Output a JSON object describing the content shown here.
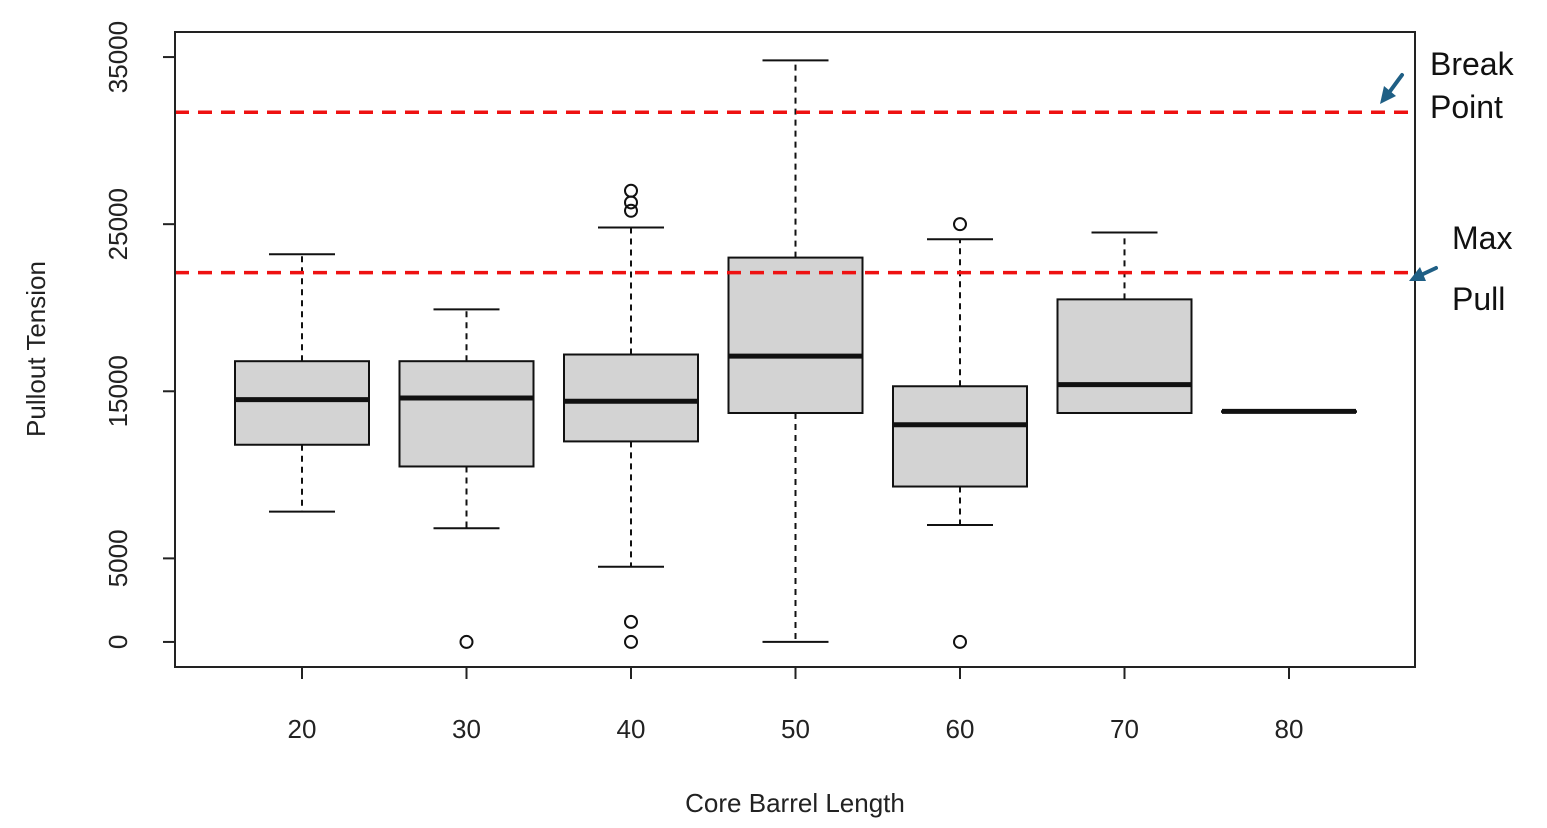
{
  "chart_data": {
    "type": "boxplot",
    "xlabel": "Core Barrel Length",
    "ylabel": "Pullout Tension",
    "ylim": [
      -1500,
      36500
    ],
    "y_ticks": [
      0,
      5000,
      15000,
      25000,
      35000
    ],
    "categories": [
      "20",
      "30",
      "40",
      "50",
      "60",
      "70",
      "80"
    ],
    "boxes": [
      {
        "category": "20",
        "whisker_low": 7800,
        "q1": 11800,
        "median": 14500,
        "q3": 16800,
        "whisker_high": 23200,
        "outliers": []
      },
      {
        "category": "30",
        "whisker_low": 6800,
        "q1": 10500,
        "median": 14600,
        "q3": 16800,
        "whisker_high": 19900,
        "outliers": [
          0
        ]
      },
      {
        "category": "40",
        "whisker_low": 4500,
        "q1": 12000,
        "median": 14400,
        "q3": 17200,
        "whisker_high": 24800,
        "outliers": [
          0,
          1200,
          25800,
          26300,
          27000
        ]
      },
      {
        "category": "50",
        "whisker_low": 0,
        "q1": 13700,
        "median": 17100,
        "q3": 23000,
        "whisker_high": 34800,
        "outliers": []
      },
      {
        "category": "60",
        "whisker_low": 7000,
        "q1": 9300,
        "median": 13000,
        "q3": 15300,
        "whisker_high": 24100,
        "outliers": [
          0,
          25000
        ]
      },
      {
        "category": "70",
        "whisker_low": 13700,
        "q1": 13700,
        "median": 15400,
        "q3": 20500,
        "whisker_high": 24500,
        "outliers": []
      },
      {
        "category": "80",
        "whisker_low": 13800,
        "q1": 13800,
        "median": 13800,
        "q3": 13800,
        "whisker_high": 13800,
        "outliers": []
      }
    ],
    "reference_lines": [
      {
        "value": 31700,
        "label_lines": [
          "Break",
          "Point"
        ],
        "color": "#ee1111"
      },
      {
        "value": 22100,
        "label_lines": [
          "Max",
          "Pull"
        ],
        "color": "#ee1111"
      }
    ],
    "colors": {
      "box_fill": "#d3d3d3",
      "box_stroke": "#111111",
      "arrow": "#1f5f85"
    }
  }
}
